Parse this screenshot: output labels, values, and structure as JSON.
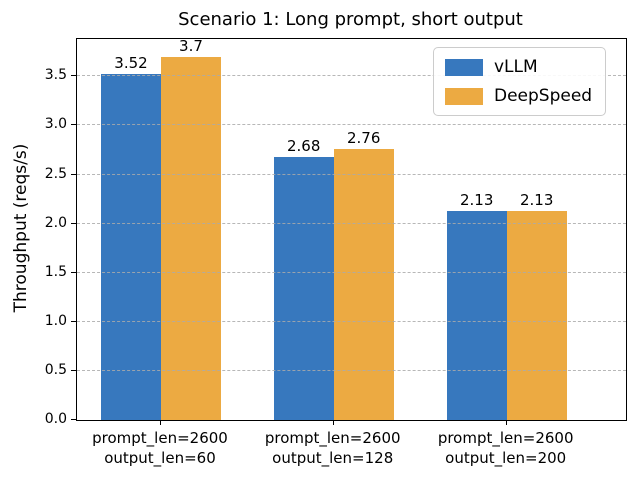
{
  "figure": {
    "title": "Scenario 1: Long prompt, short output",
    "ylabel": "Throughput (reqs/s)"
  },
  "chart_data": {
    "type": "bar",
    "title": "Scenario 1: Long prompt, short output",
    "xlabel": "",
    "ylabel": "Throughput (reqs/s)",
    "categories": [
      "prompt_len=2600\noutput_len=60",
      "prompt_len=2600\noutput_len=128",
      "prompt_len=2600\noutput_len=200"
    ],
    "series": [
      {
        "name": "vLLM",
        "color": "#3778be",
        "values": [
          3.52,
          2.68,
          2.13
        ]
      },
      {
        "name": "DeepSpeed",
        "color": "#ecaa42",
        "values": [
          3.7,
          2.76,
          2.13
        ]
      }
    ],
    "yticks": [
      0.0,
      0.5,
      1.0,
      1.5,
      2.0,
      2.5,
      3.0,
      3.5
    ],
    "ylim": [
      0,
      3.88
    ],
    "grid": "horizontal dashed, drawn above bars",
    "legend_position": "upper right",
    "bar_value_labels_shown": true
  }
}
